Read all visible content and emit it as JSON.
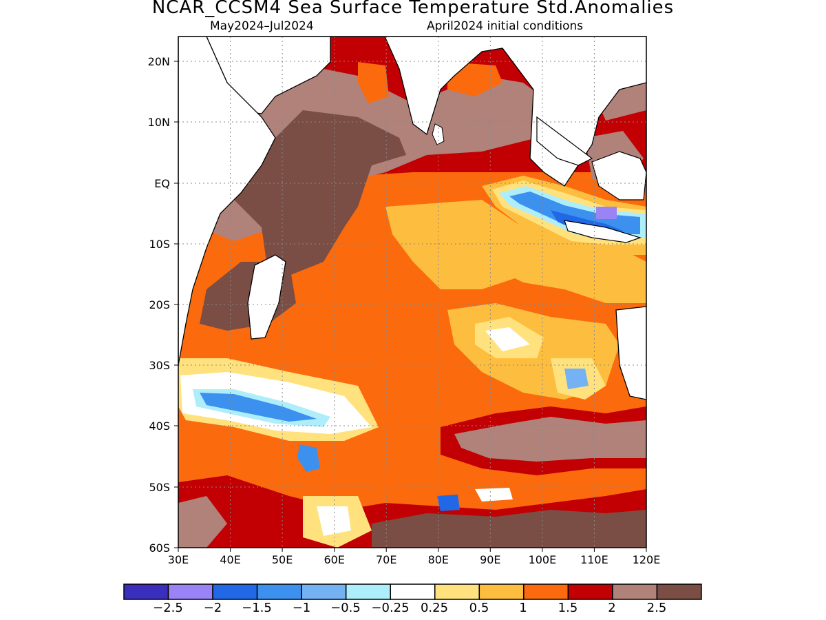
{
  "title": "NCAR_CCSM4 Sea Surface Temperature Std.Anomalies",
  "subtitle_left": "May2024–Jul2024",
  "subtitle_right": "April2024 initial conditions",
  "map": {
    "lon_range": [
      30,
      120
    ],
    "lat_range": [
      -60,
      24
    ],
    "lat_ticks": [
      "20N",
      "10N",
      "EQ",
      "10S",
      "20S",
      "30S",
      "40S",
      "50S",
      "60S"
    ],
    "lon_ticks": [
      "30E",
      "40E",
      "50E",
      "60E",
      "70E",
      "80E",
      "90E",
      "100E",
      "110E",
      "120E"
    ],
    "land_color": "#ffffff",
    "coastline_color": "#000000"
  },
  "colorbar": {
    "colors": [
      "#3a2fbd",
      "#9a84f5",
      "#2168e6",
      "#3c91ef",
      "#74b2f4",
      "#aeeefa",
      "#ffffff",
      "#ffe27e",
      "#fdbd3f",
      "#fb6a0d",
      "#c20004",
      "#b0827a",
      "#7a4e44"
    ],
    "labels": [
      "−2.5",
      "−2",
      "−1.5",
      "−1",
      "−0.5",
      "−0.25",
      "0.25",
      "0.5",
      "1",
      "1.5",
      "2",
      "2.5"
    ]
  }
}
